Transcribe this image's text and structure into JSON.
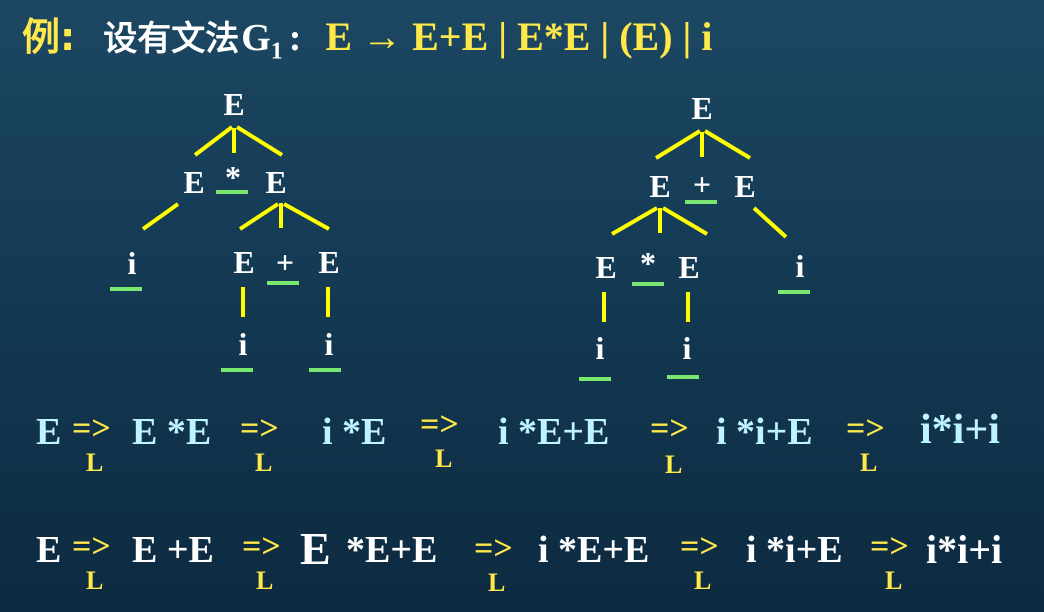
{
  "title": {
    "example": "例:",
    "lead": "设有文法",
    "grammar_letter": "G",
    "grammar_sub": "1",
    "colon": ":",
    "production": "E → E+E | E*E | (E) | i"
  },
  "tree1": {
    "root": "E",
    "l1_left": "E",
    "l1_op": "*",
    "l1_right": "E",
    "l2_leaf": "i",
    "l2_left": "E",
    "l2_op": "+",
    "l2_right": "E",
    "l3_left": "i",
    "l3_right": "i"
  },
  "tree2": {
    "root": "E",
    "l1_left": "E",
    "l1_op": "+",
    "l1_right": "E",
    "l2_left": "E",
    "l2_op": "*",
    "l2_right": "E",
    "l2_leaf": "i",
    "l3_left": "i",
    "l3_right": "i"
  },
  "derivation1": {
    "start": "E",
    "arrow": "=>",
    "sub": "L",
    "steps": [
      "E *E",
      "i *E",
      "i *E+E",
      "i *i+E",
      "i*i+i"
    ]
  },
  "derivation2": {
    "start": "E",
    "arrow": "=>",
    "sub": "L",
    "s1": "E +E",
    "s2_head": "E",
    "s2_tail": "*E+E",
    "s3": "i *E+E",
    "s4": "i *i+E",
    "s5": "i*i+i"
  },
  "colors": {
    "title_yellow": "#ffe84a",
    "branch_yellow": "#ffff00",
    "underline_green": "#7ae870",
    "derivation_cyan": "#bdf4ff",
    "text_white": "#ffffff"
  }
}
